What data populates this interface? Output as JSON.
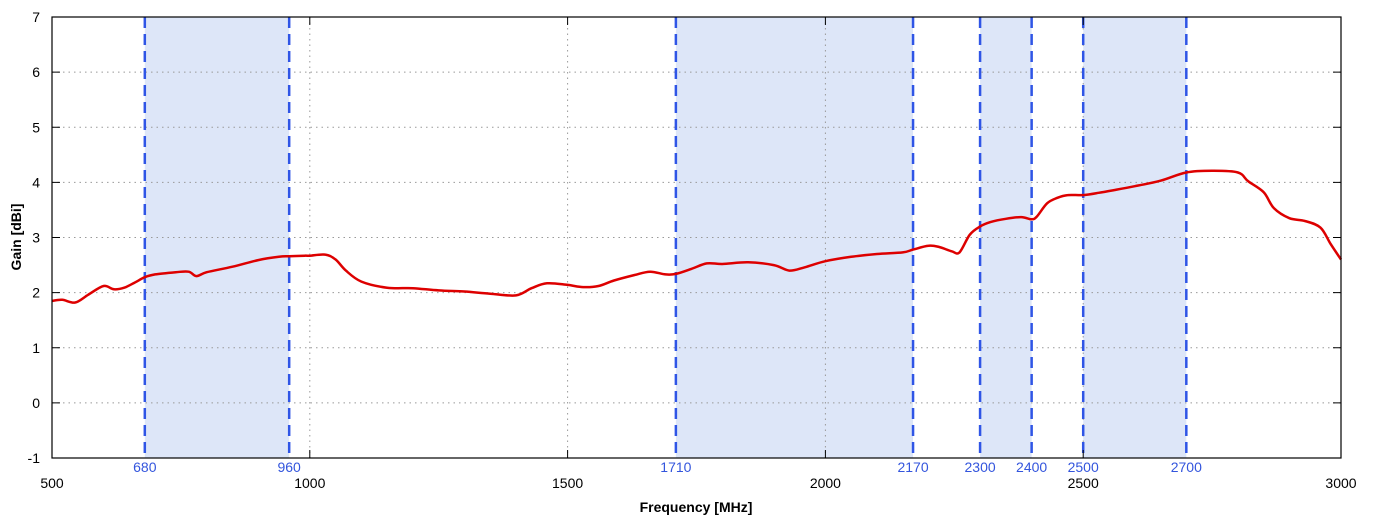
{
  "chart_data": {
    "type": "line",
    "xlabel": "Frequency [MHz]",
    "ylabel": "Gain [dBi]",
    "xlim": [
      500,
      3000
    ],
    "ylim": [
      -1,
      7
    ],
    "x_ticks": [
      500,
      1000,
      1500,
      2000,
      2500,
      3000
    ],
    "y_ticks": [
      -1,
      0,
      1,
      2,
      3,
      4,
      5,
      6,
      7
    ],
    "grid": true,
    "colors": {
      "line": "#dd0000",
      "band_fill": "#dde6f8",
      "band_edge": "#2f55e6",
      "grid": "#999999",
      "band_label": "#3355dd"
    },
    "bands": [
      {
        "start": 680,
        "end": 960,
        "start_label": "680",
        "end_label": "960"
      },
      {
        "start": 1710,
        "end": 2170,
        "start_label": "1710",
        "end_label": "2170"
      },
      {
        "start": 2300,
        "end": 2400,
        "start_label": "2300",
        "end_label": "2400"
      },
      {
        "start": 2500,
        "end": 2700,
        "start_label": "2500",
        "end_label": "2700"
      }
    ],
    "series": [
      {
        "x": [
          500,
          520,
          545,
          570,
          600,
          620,
          640,
          660,
          680,
          700,
          740,
          765,
          780,
          800,
          850,
          900,
          940,
          960,
          990,
          1000,
          1030,
          1050,
          1070,
          1100,
          1150,
          1200,
          1250,
          1300,
          1350,
          1400,
          1430,
          1460,
          1500,
          1530,
          1560,
          1590,
          1630,
          1660,
          1690,
          1710,
          1740,
          1770,
          1800,
          1850,
          1900,
          1930,
          1960,
          2000,
          2050,
          2100,
          2150,
          2170,
          2200,
          2220,
          2245,
          2260,
          2280,
          2300,
          2320,
          2350,
          2380,
          2400,
          2410,
          2430,
          2450,
          2470,
          2500,
          2530,
          2560,
          2600,
          2650,
          2700,
          2750,
          2800,
          2820,
          2850,
          2870,
          2900,
          2930,
          2960,
          2980,
          3000
        ],
        "values": [
          1.85,
          1.87,
          1.82,
          1.96,
          2.12,
          2.06,
          2.09,
          2.18,
          2.28,
          2.33,
          2.37,
          2.38,
          2.3,
          2.37,
          2.47,
          2.59,
          2.65,
          2.66,
          2.67,
          2.67,
          2.69,
          2.6,
          2.4,
          2.2,
          2.09,
          2.08,
          2.04,
          2.02,
          1.98,
          1.95,
          2.08,
          2.17,
          2.14,
          2.1,
          2.12,
          2.22,
          2.32,
          2.38,
          2.33,
          2.34,
          2.43,
          2.53,
          2.52,
          2.55,
          2.5,
          2.4,
          2.46,
          2.57,
          2.65,
          2.7,
          2.73,
          2.78,
          2.85,
          2.83,
          2.75,
          2.73,
          3.05,
          3.2,
          3.28,
          3.34,
          3.37,
          3.33,
          3.38,
          3.62,
          3.72,
          3.77,
          3.77,
          3.81,
          3.86,
          3.93,
          4.03,
          4.18,
          4.21,
          4.18,
          4.02,
          3.82,
          3.53,
          3.35,
          3.3,
          3.18,
          2.88,
          2.6
        ]
      }
    ]
  }
}
